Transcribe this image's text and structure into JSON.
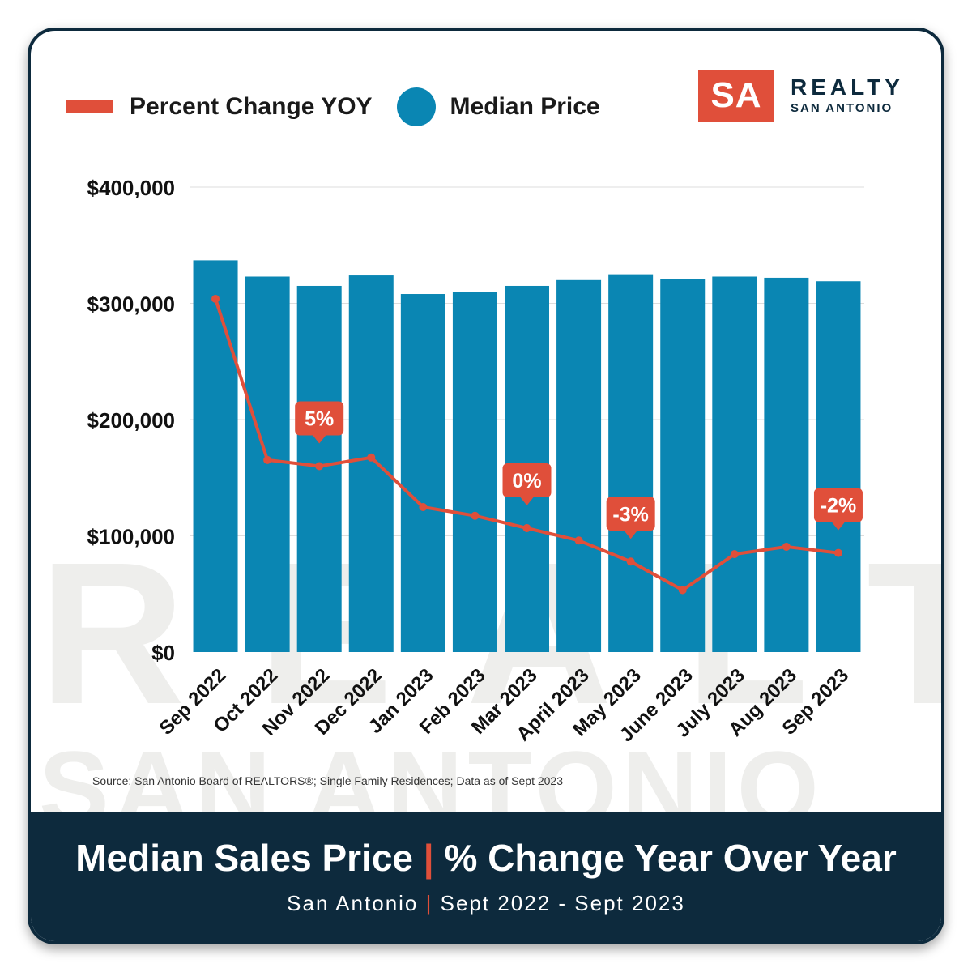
{
  "legend": {
    "line_label": "Percent Change YOY",
    "bar_label": "Median Price"
  },
  "logo": {
    "mark": "SA",
    "name": "REALTY",
    "subname": "SAN ANTONIO"
  },
  "watermark": {
    "line1": "REALTY",
    "line2": "SAN ANTONIO"
  },
  "source": "Source: San Antonio Board of REALTORS®; Single Family Residences; Data as of Sept 2023",
  "footer": {
    "title_left": "Median Sales Price",
    "title_sep": "|",
    "title_right": "% Change Year Over Year",
    "sub_left": "San Antonio",
    "sub_sep": "|",
    "sub_right": "Sept 2022 - Sept 2023"
  },
  "colors": {
    "bar": "#0a86b3",
    "line": "#e04f3a",
    "footer_bg": "#0d2a3d",
    "border": "#0d2a3d"
  },
  "chart_data": {
    "type": "bar",
    "categories": [
      "Sep 2022",
      "Oct 2022",
      "Nov 2022",
      "Dec 2022",
      "Jan 2023",
      "Feb 2023",
      "Mar 2023",
      "April 2023",
      "May 2023",
      "June 2023",
      "July 2023",
      "Aug 2023",
      "Sep 2023"
    ],
    "series": [
      {
        "name": "Median Price",
        "type": "bar",
        "values": [
          337000,
          323000,
          315000,
          324000,
          308000,
          310000,
          315000,
          320000,
          325000,
          321000,
          323000,
          322000,
          319000
        ]
      },
      {
        "name": "Percent Change YOY",
        "type": "line",
        "values": [
          18.5,
          5.5,
          5,
          5.7,
          1.7,
          1,
          0,
          -1,
          -2.7,
          -5,
          -2.1,
          -1.5,
          -2
        ]
      }
    ],
    "annotations": [
      {
        "index": 2,
        "label": "5%"
      },
      {
        "index": 6,
        "label": "0%"
      },
      {
        "index": 8,
        "label": "-3%"
      },
      {
        "index": 12,
        "label": "-2%"
      }
    ],
    "y_ticks": [
      "$0",
      "$100,000",
      "$200,000",
      "$300,000",
      "$400,000"
    ],
    "ylim": [
      0,
      400000
    ],
    "grid": true,
    "legend_position": "top-left"
  }
}
